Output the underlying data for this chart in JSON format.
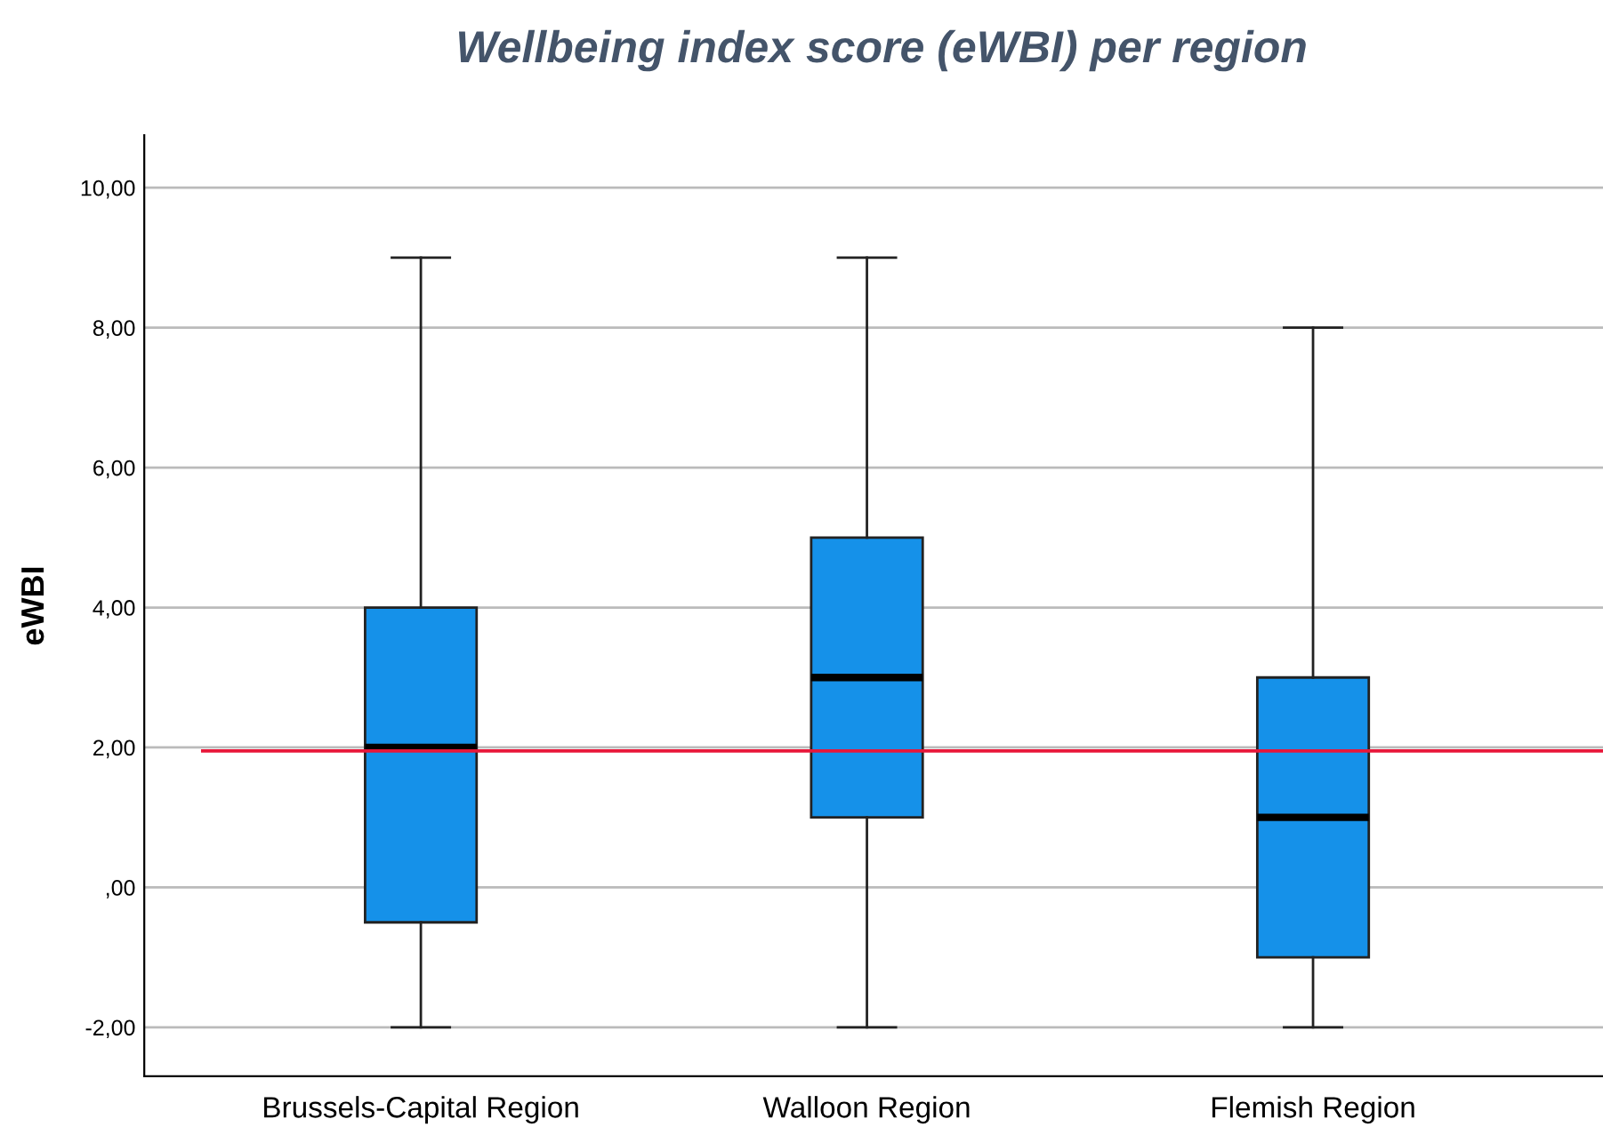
{
  "chart_data": {
    "type": "box",
    "title": "Wellbeing index score (eWBI) per region",
    "ylabel": "eWBI",
    "categories": [
      "Brussels-Capital Region",
      "Walloon Region",
      "Flemish Region"
    ],
    "series": [
      {
        "color": "#1591e9",
        "boxes": [
          {
            "low": -2,
            "q1": -0.5,
            "median": 2,
            "q3": 4,
            "high": 9
          },
          {
            "low": -2,
            "q1": 1,
            "median": 3,
            "q3": 5,
            "high": 9
          },
          {
            "low": -2,
            "q1": -1,
            "median": 1,
            "q3": 3,
            "high": 8
          }
        ]
      }
    ],
    "ylim": [
      -2.7,
      10.75
    ],
    "yticks": [
      {
        "value": -2,
        "label": "-2,00"
      },
      {
        "value": 0,
        "label": ",00"
      },
      {
        "value": 2,
        "label": "2,00"
      },
      {
        "value": 4,
        "label": "4,00"
      },
      {
        "value": 6,
        "label": "6,00"
      },
      {
        "value": 8,
        "label": "8,00"
      },
      {
        "value": 10,
        "label": "10,00"
      }
    ],
    "ref_lines": [
      {
        "axis": "y",
        "value": 1.95,
        "color": "#e8173a"
      }
    ],
    "grid": "y"
  }
}
